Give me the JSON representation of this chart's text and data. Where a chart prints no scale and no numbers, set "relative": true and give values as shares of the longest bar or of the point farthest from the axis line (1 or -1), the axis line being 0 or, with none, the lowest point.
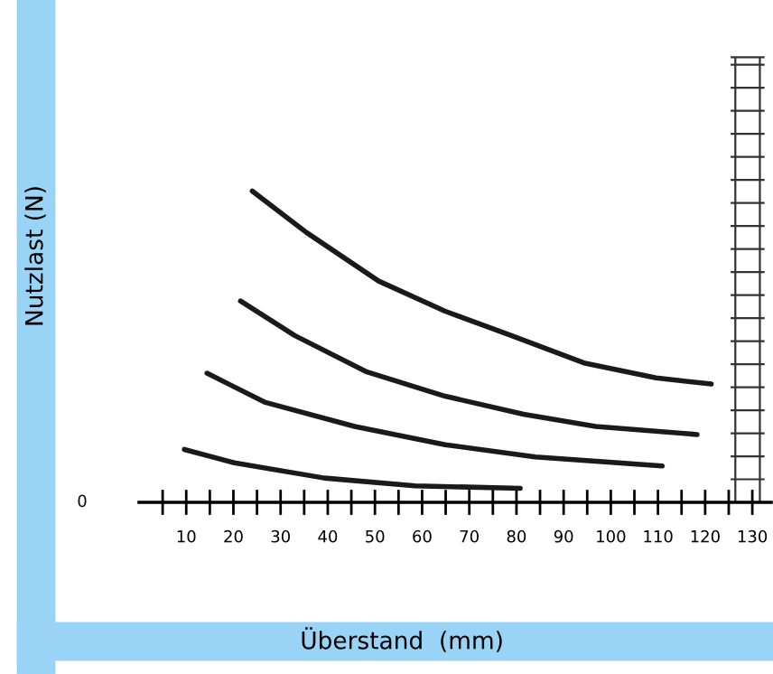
{
  "chart_data": {
    "type": "line",
    "xlabel": "Überstand  (mm)",
    "ylabel": "Nutzlast (N)",
    "relative": true,
    "annotations": [
      "0"
    ],
    "xlim": [
      0,
      134
    ],
    "xticks": [
      {
        "value": 5,
        "label": null
      },
      10,
      {
        "value": 15,
        "label": null
      },
      20,
      {
        "value": 25,
        "label": null
      },
      30,
      {
        "value": 35,
        "label": null
      },
      40,
      {
        "value": 45,
        "label": null
      },
      50,
      {
        "value": 55,
        "label": null
      },
      60,
      {
        "value": 65,
        "label": null
      },
      70,
      {
        "value": 75,
        "label": null
      },
      80,
      {
        "value": 85,
        "label": null
      },
      90,
      {
        "value": 95,
        "label": null
      },
      100,
      {
        "value": 105,
        "label": null
      },
      110,
      {
        "value": 115,
        "label": null
      },
      120,
      {
        "value": 125,
        "label": null
      },
      130
    ],
    "grid": false,
    "legend": false,
    "marker": "none",
    "line_style": "solid",
    "series": [
      {
        "color": "#1a1a1a",
        "x": [
          24.0,
          35.5,
          50.8,
          64.9,
          78.9,
          94.3,
          109.6,
          121.3
        ],
        "values": [
          1.0,
          0.867,
          0.711,
          0.614,
          0.536,
          0.448,
          0.4,
          0.38
        ]
      },
      {
        "color": "#1a1a1a",
        "x": [
          21.5,
          33.0,
          48.3,
          64.9,
          81.5,
          96.8,
          118.3
        ],
        "values": [
          0.647,
          0.536,
          0.419,
          0.341,
          0.283,
          0.244,
          0.218
        ]
      },
      {
        "color": "#1a1a1a",
        "x": [
          14.4,
          26.6,
          45.7,
          64.9,
          84.0,
          110.9
        ],
        "values": [
          0.415,
          0.322,
          0.244,
          0.185,
          0.146,
          0.117
        ]
      },
      {
        "color": "#1a1a1a",
        "x": [
          9.6,
          20.2,
          39.3,
          58.5,
          80.8
        ],
        "values": [
          0.17,
          0.127,
          0.078,
          0.053,
          0.045
        ]
      }
    ]
  }
}
